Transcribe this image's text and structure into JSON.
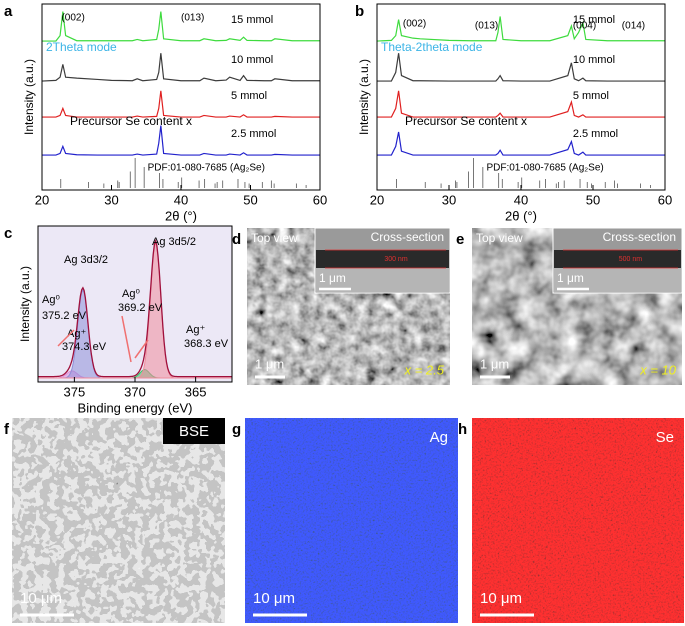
{
  "chart_data": [
    {
      "type": "xrd",
      "panel": "a",
      "ylabel": "Intensity (a.u.)",
      "xlabel": "2θ (°)",
      "mode_label": "2Theta mode",
      "content_label": "Precursor Se content x",
      "annotations": [
        "(002)",
        "(013)"
      ],
      "xlim": [
        20,
        60
      ],
      "xticks": [
        20,
        30,
        40,
        50,
        60
      ],
      "ylim": [
        0,
        100
      ],
      "x": [
        20,
        22,
        22.6,
        23,
        23.4,
        25,
        28,
        30,
        33,
        33.7,
        34.5,
        36.5,
        36.8,
        37.1,
        37.5,
        40,
        42.7,
        43.3,
        45,
        46.5,
        47,
        48.5,
        49,
        49.5,
        52,
        53,
        53.5,
        56,
        60
      ],
      "series": [
        {
          "name": "15 mmol",
          "color": "#3edb3e",
          "values": [
            3,
            3,
            20,
            95,
            20,
            4,
            4,
            4,
            4,
            8,
            4,
            8,
            40,
            95,
            10,
            4,
            4,
            10,
            4,
            5,
            10,
            5,
            15,
            5,
            4,
            4,
            10,
            4,
            4
          ]
        },
        {
          "name": "10 mmol",
          "color": "#3c3c3c",
          "values": [
            3,
            5,
            15,
            55,
            15,
            12,
            8,
            5,
            4,
            10,
            4,
            8,
            30,
            90,
            10,
            4,
            4,
            12,
            4,
            6,
            15,
            5,
            20,
            5,
            4,
            4,
            10,
            4,
            4
          ]
        },
        {
          "name": "5 mmol",
          "color": "#e02020",
          "values": [
            3,
            3,
            8,
            30,
            8,
            3,
            3,
            3,
            3,
            6,
            3,
            5,
            30,
            85,
            8,
            3,
            3,
            8,
            3,
            3,
            6,
            3,
            10,
            3,
            3,
            3,
            5,
            3,
            3
          ]
        },
        {
          "name": "2.5 mmol",
          "color": "#2222cc",
          "values": [
            3,
            3,
            8,
            30,
            8,
            4,
            3,
            3,
            3,
            6,
            3,
            6,
            40,
            95,
            8,
            3,
            3,
            8,
            3,
            3,
            6,
            3,
            10,
            3,
            3,
            3,
            5,
            3,
            3
          ]
        }
      ],
      "reference": {
        "label": "PDF:01-080-7685 (Ag₂Se)",
        "x": [
          22.7,
          26.7,
          28.9,
          30.9,
          31.1,
          32.7,
          33.4,
          34.7,
          36.9,
          37.4,
          39.6,
          40.1,
          42.6,
          43.4,
          44.9,
          45.2,
          46.0,
          48.2,
          49.2,
          49.8,
          51.7,
          53.0,
          53.4,
          56.6,
          58.0
        ],
        "values": [
          30,
          20,
          15,
          25,
          20,
          55,
          100,
          70,
          50,
          30,
          20,
          35,
          25,
          30,
          15,
          20,
          25,
          30,
          20,
          15,
          20,
          25,
          15,
          15,
          10
        ]
      }
    },
    {
      "type": "xrd",
      "panel": "b",
      "ylabel": "Intensity (a.u.)",
      "xlabel": "2θ (°)",
      "mode_label": "Theta-2theta mode",
      "content_label": "Precursor Se content x",
      "annotations": [
        "(002)",
        "(013)",
        "(004)",
        "(014)"
      ],
      "xlim": [
        20,
        60
      ],
      "xticks": [
        20,
        30,
        40,
        50,
        60
      ],
      "ylim": [
        0,
        100
      ],
      "x": [
        20,
        22,
        22.6,
        23,
        23.4,
        25,
        26,
        30,
        33,
        36.5,
        36.8,
        37.1,
        37.5,
        40,
        44,
        46.5,
        47,
        47.4,
        48,
        48.6,
        49,
        52,
        56,
        60
      ],
      "series": [
        {
          "name": "15 mmol",
          "color": "#3edb3e",
          "values": [
            3,
            5,
            20,
            70,
            20,
            12,
            10,
            5,
            4,
            4,
            30,
            80,
            8,
            4,
            4,
            20,
            50,
            10,
            30,
            60,
            8,
            4,
            4,
            4
          ]
        },
        {
          "name": "10 mmol",
          "color": "#3c3c3c",
          "values": [
            3,
            3,
            30,
            90,
            20,
            4,
            4,
            3,
            3,
            3,
            10,
            20,
            4,
            3,
            3,
            20,
            60,
            10,
            4,
            12,
            4,
            3,
            3,
            3
          ]
        },
        {
          "name": "5 mmol",
          "color": "#e02020",
          "values": [
            3,
            3,
            30,
            85,
            15,
            3,
            3,
            3,
            3,
            3,
            8,
            15,
            3,
            3,
            3,
            20,
            50,
            8,
            3,
            10,
            3,
            3,
            3,
            3
          ]
        },
        {
          "name": "2.5 mmol",
          "color": "#2222cc",
          "values": [
            3,
            3,
            30,
            75,
            15,
            3,
            3,
            3,
            3,
            3,
            8,
            18,
            3,
            3,
            3,
            20,
            45,
            8,
            3,
            12,
            3,
            3,
            3,
            3
          ]
        }
      ],
      "reference": {
        "label": "PDF:01-080-7685 (Ag₂Se)",
        "x": [
          22.7,
          26.7,
          28.9,
          30.9,
          31.1,
          32.7,
          33.4,
          34.7,
          36.9,
          37.4,
          39.6,
          40.1,
          42.6,
          43.4,
          44.9,
          45.2,
          46.0,
          48.2,
          49.2,
          49.8,
          51.7,
          53.0,
          53.4,
          56.6,
          58.0
        ],
        "values": [
          30,
          20,
          15,
          25,
          20,
          55,
          100,
          70,
          50,
          30,
          20,
          35,
          25,
          30,
          15,
          20,
          25,
          30,
          20,
          15,
          20,
          25,
          15,
          15,
          10
        ]
      }
    },
    {
      "type": "xps",
      "panel": "c",
      "ylabel": "Intensity (a.u.)",
      "xlabel": "Binding energy (eV)",
      "xlim": [
        378,
        362
      ],
      "xticks": [
        375,
        370,
        365
      ],
      "ylim": [
        0,
        100
      ],
      "envelope_color": "#a0103c",
      "annotations": [
        "Ag 3d3/2",
        "Ag 3d5/2",
        "Ag⁰",
        "375.2 eV",
        "Ag⁺",
        "374.3 eV",
        "Ag⁰",
        "369.2 eV",
        "Ag⁺",
        "368.3 eV"
      ],
      "components": [
        {
          "center": 375.2,
          "height": 5,
          "fwhm": 1.0,
          "color": "#e08ad8"
        },
        {
          "center": 374.3,
          "height": 62,
          "fwhm": 1.0,
          "color": "#8f8fd8"
        },
        {
          "center": 369.2,
          "height": 6,
          "fwhm": 0.9,
          "color": "#3fbf6a"
        },
        {
          "center": 368.3,
          "height": 95,
          "fwhm": 1.0,
          "color": "#f08c9c"
        }
      ]
    }
  ],
  "images": [
    {
      "panel": "d",
      "main": "Top view",
      "inset": "Cross-section",
      "inset_scale": "1 μm",
      "inset_thickness": "300 nm",
      "scale": "1 μm",
      "sample": "x = 2.5"
    },
    {
      "panel": "e",
      "main": "Top view",
      "inset": "Cross-section",
      "inset_scale": "1 μm",
      "inset_thickness": "500 nm",
      "scale": "1 μm",
      "sample": "x = 10"
    },
    {
      "panel": "f",
      "main": "BSE",
      "scale": "10 μm"
    },
    {
      "panel": "g",
      "main": "Ag",
      "scale": "10 μm"
    },
    {
      "panel": "h",
      "main": "Se",
      "scale": "10 μm"
    }
  ]
}
